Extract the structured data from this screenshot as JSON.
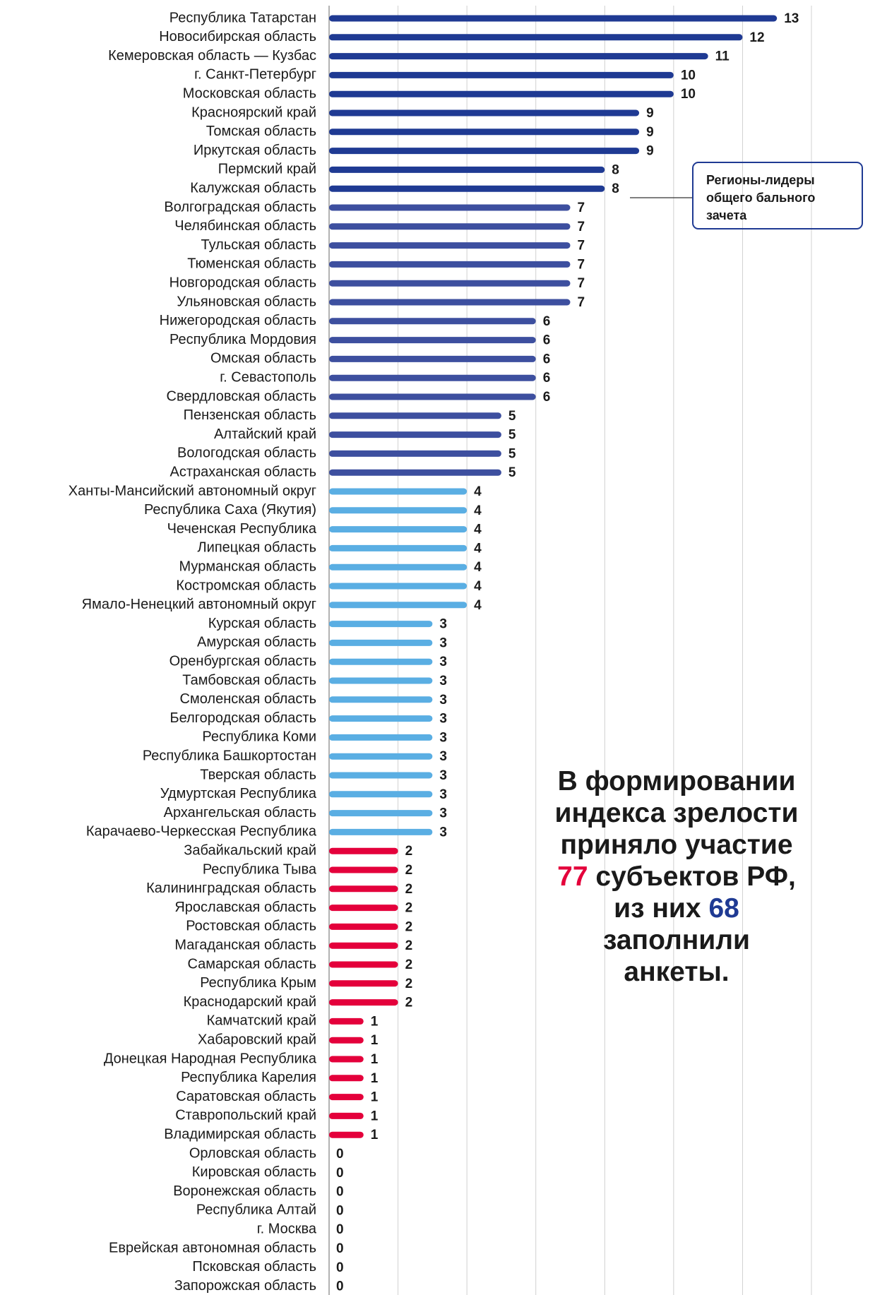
{
  "chart_data": {
    "type": "hbar",
    "categories": [
      "Республика Татарстан",
      "Новосибирская область",
      "Кемеровская область — Кузбас",
      "г. Санкт-Петербург",
      "Московская область",
      "Красноярский край",
      "Томская область",
      "Иркутская область",
      "Пермский край",
      "Калужская область",
      "Волгоградская область",
      "Челябинская область",
      "Тульская область",
      "Тюменская область",
      "Новгородская область",
      "Ульяновская область",
      "Нижегородская область",
      "Республика Мордовия",
      "Омская область",
      "г. Севастополь",
      "Свердловская область",
      "Пензенская область",
      "Алтайский край",
      "Вологодская область",
      "Астраханская область",
      "Ханты-Мансийский автономный округ",
      "Республика Саха (Якутия)",
      "Чеченская Республика",
      "Липецкая область",
      "Мурманская область",
      "Костромская область",
      "Ямало-Ненецкий автономный округ",
      "Курская область",
      "Амурская область",
      "Оренбургская область",
      "Тамбовская область",
      "Смоленская область",
      "Белгородская область",
      "Республика Коми",
      "Республика Башкортостан",
      "Тверская область",
      "Удмуртская Республика",
      "Архангельская область",
      "Карачаево-Черкесская Республика",
      "Забайкальский край",
      "Республика Тыва",
      "Калининградская область",
      "Ярославская область",
      "Ростовская область",
      "Магаданская область",
      "Самарская область",
      "Республика Крым",
      "Краснодарский край",
      "Камчатский край",
      "Хабаровский край",
      "Донецкая Народная Республика",
      "Республика Карелия",
      "Саратовская область",
      "Ставропольский край",
      "Владимирская область",
      "Орловская область",
      "Кировская область",
      "Воронежская область",
      "Республика Алтай",
      "г. Москва",
      "Еврейская автономная область",
      "Псковская область",
      "Запорожская область"
    ],
    "values": [
      13,
      12,
      11,
      10,
      10,
      9,
      9,
      9,
      8,
      8,
      7,
      7,
      7,
      7,
      7,
      7,
      6,
      6,
      6,
      6,
      6,
      5,
      5,
      5,
      5,
      4,
      4,
      4,
      4,
      4,
      4,
      4,
      3,
      3,
      3,
      3,
      3,
      3,
      3,
      3,
      3,
      3,
      3,
      3,
      2,
      2,
      2,
      2,
      2,
      2,
      2,
      2,
      2,
      1,
      1,
      1,
      1,
      1,
      1,
      1,
      0,
      0,
      0,
      0,
      0,
      0,
      0,
      0
    ],
    "colors": [
      "#1f3a93",
      "#1f3a93",
      "#1f3a93",
      "#1f3a93",
      "#1f3a93",
      "#1f3a93",
      "#1f3a93",
      "#1f3a93",
      "#1f3a93",
      "#1f3a93",
      "#3d4f9f",
      "#3d4f9f",
      "#3d4f9f",
      "#3d4f9f",
      "#3d4f9f",
      "#3d4f9f",
      "#3d4f9f",
      "#3d4f9f",
      "#3d4f9f",
      "#3d4f9f",
      "#3d4f9f",
      "#3d4f9f",
      "#3d4f9f",
      "#3d4f9f",
      "#3d4f9f",
      "#5aaee3",
      "#5aaee3",
      "#5aaee3",
      "#5aaee3",
      "#5aaee3",
      "#5aaee3",
      "#5aaee3",
      "#5aaee3",
      "#5aaee3",
      "#5aaee3",
      "#5aaee3",
      "#5aaee3",
      "#5aaee3",
      "#5aaee3",
      "#5aaee3",
      "#5aaee3",
      "#5aaee3",
      "#5aaee3",
      "#5aaee3",
      "#e4003b",
      "#e4003b",
      "#e4003b",
      "#e4003b",
      "#e4003b",
      "#e4003b",
      "#e4003b",
      "#e4003b",
      "#e4003b",
      "#e4003b",
      "#e4003b",
      "#e4003b",
      "#e4003b",
      "#e4003b",
      "#e4003b",
      "#e4003b",
      "#e4003b",
      "#e4003b",
      "#e4003b",
      "#e4003b",
      "#e4003b",
      "#e4003b",
      "#e4003b",
      "#e4003b"
    ],
    "xlim": [
      0,
      14
    ],
    "xticks": [
      0,
      2,
      4,
      6,
      8,
      10,
      12,
      14
    ],
    "grid": true,
    "annotation": "Регионы-лидеры общего бального зачета",
    "note": {
      "lines": [
        [
          {
            "text": "В формировании"
          }
        ],
        [
          {
            "text": "индекса зрелости"
          }
        ],
        [
          {
            "text": "приняло участие"
          }
        ],
        [
          {
            "text": "77",
            "color": "#e4003b"
          },
          {
            "text": " субъектов РФ,"
          }
        ],
        [
          {
            "text": "из них "
          },
          {
            "text": "68",
            "color": "#1f3a93"
          }
        ],
        [
          {
            "text": "заполнили"
          }
        ],
        [
          {
            "text": "анкеты."
          }
        ]
      ]
    }
  }
}
